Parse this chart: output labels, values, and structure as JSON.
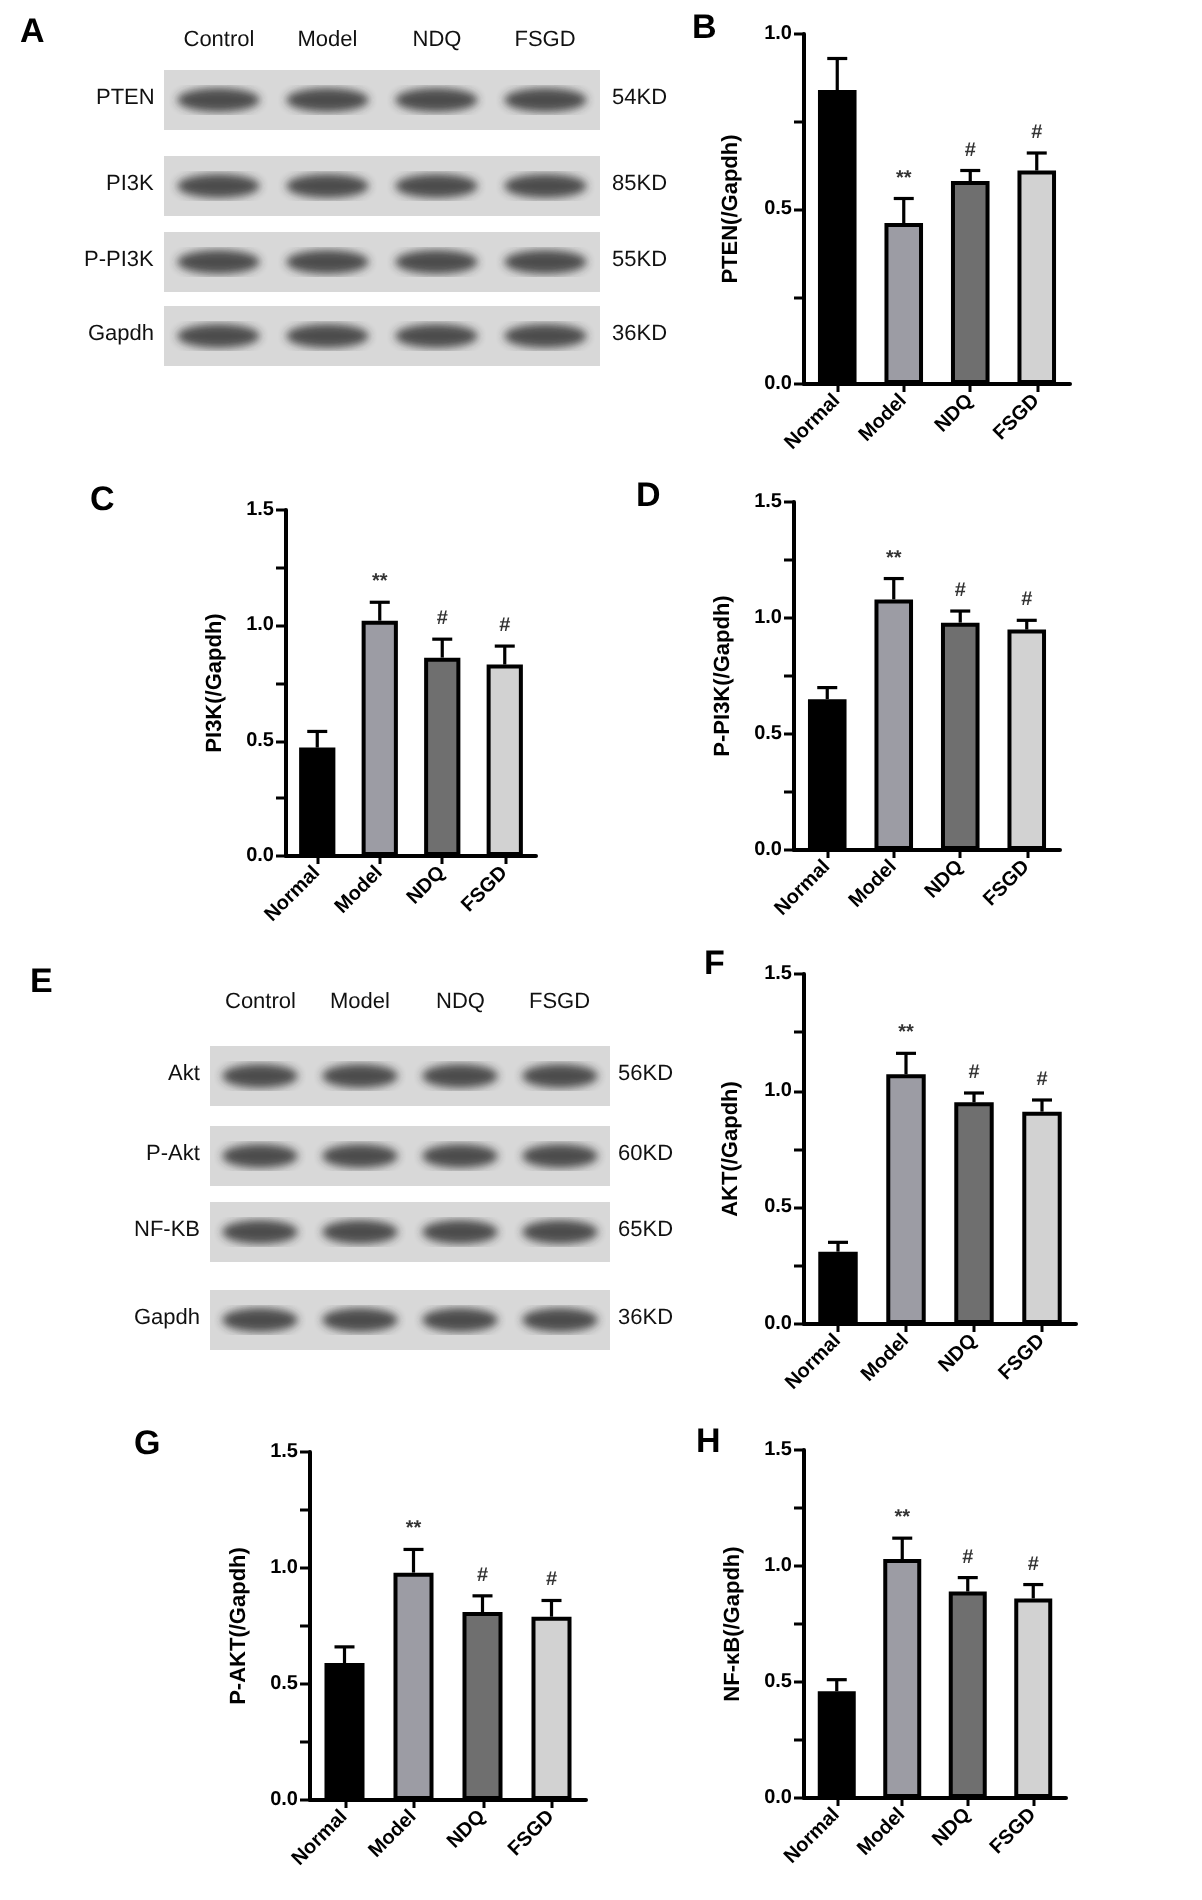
{
  "chart_data": [
    {
      "type": "other",
      "title": "A",
      "categories": [
        "Control",
        "Model",
        "NDQ",
        "FSGD"
      ],
      "y_categories": [
        "PTEN",
        "PI3K",
        "P-PI3K",
        "Gapdh"
      ],
      "y2_categories": [
        "54KD",
        "85KD",
        "55KD",
        "36KD"
      ]
    },
    {
      "type": "bar",
      "title": "B",
      "categories": [
        "Normal",
        "Model",
        "NDQ",
        "FSGD"
      ],
      "values": [
        0.84,
        0.46,
        0.58,
        0.61
      ],
      "colors": [
        "#000000",
        "#9c9ca4",
        "#6f6f6f",
        "#d2d2d2"
      ],
      "errors": [
        [
          0.84,
          0.93
        ],
        [
          0.46,
          0.53
        ],
        [
          0.58,
          0.61
        ],
        [
          0.61,
          0.66
        ]
      ],
      "ylabel": "PTEN(/Gapdh)",
      "ylim": [
        0,
        1
      ],
      "yticks": [
        {
          "value": 0,
          "label": "0.0"
        },
        {
          "value": 0.25,
          "label": null
        },
        {
          "value": 0.5,
          "label": "0.5"
        },
        {
          "value": 0.75,
          "label": null
        },
        {
          "value": 1,
          "label": "1.0"
        }
      ],
      "grid": false,
      "annotations": [
        {
          "text": "**",
          "x": "Model",
          "y": 0.46
        },
        {
          "text": "#",
          "x": "NDQ",
          "y": 0.58
        },
        {
          "text": "#",
          "x": "FSGD",
          "y": 0.61
        }
      ]
    },
    {
      "type": "bar",
      "title": "C",
      "categories": [
        "Normal",
        "Model",
        "NDQ",
        "FSGD"
      ],
      "values": [
        0.47,
        1.02,
        0.86,
        0.83
      ],
      "colors": [
        "#000000",
        "#9c9ca4",
        "#6f6f6f",
        "#d2d2d2"
      ],
      "errors": [
        [
          0.47,
          0.54
        ],
        [
          1.02,
          1.1
        ],
        [
          0.86,
          0.94
        ],
        [
          0.83,
          0.91
        ]
      ],
      "ylabel": "PI3K(/Gapdh)",
      "ylim": [
        0,
        1.5
      ],
      "yticks": [
        {
          "value": 0,
          "label": "0.0"
        },
        {
          "value": 0.25,
          "label": null
        },
        {
          "value": 0.5,
          "label": "0.5"
        },
        {
          "value": 0.75,
          "label": null
        },
        {
          "value": 1,
          "label": "1.0"
        },
        {
          "value": 1.25,
          "label": null
        },
        {
          "value": 1.5,
          "label": "1.5"
        }
      ],
      "grid": false,
      "annotations": [
        {
          "text": "**",
          "x": "Model",
          "y": 1.02
        },
        {
          "text": "#",
          "x": "NDQ",
          "y": 0.86
        },
        {
          "text": "#",
          "x": "FSGD",
          "y": 0.83
        }
      ]
    },
    {
      "type": "bar",
      "title": "D",
      "categories": [
        "Normal",
        "Model",
        "NDQ",
        "FSGD"
      ],
      "values": [
        0.65,
        1.08,
        0.98,
        0.95
      ],
      "colors": [
        "#000000",
        "#9c9ca4",
        "#6f6f6f",
        "#d2d2d2"
      ],
      "errors": [
        [
          0.65,
          0.7
        ],
        [
          1.08,
          1.17
        ],
        [
          0.98,
          1.03
        ],
        [
          0.95,
          0.99
        ]
      ],
      "ylabel": "P-PI3K(/Gapdh)",
      "ylim": [
        0,
        1.5
      ],
      "yticks": [
        {
          "value": 0,
          "label": "0.0"
        },
        {
          "value": 0.25,
          "label": null
        },
        {
          "value": 0.5,
          "label": "0.5"
        },
        {
          "value": 0.75,
          "label": null
        },
        {
          "value": 1,
          "label": "1.0"
        },
        {
          "value": 1.25,
          "label": null
        },
        {
          "value": 1.5,
          "label": "1.5"
        }
      ],
      "grid": false,
      "annotations": [
        {
          "text": "**",
          "x": "Model",
          "y": 1.08
        },
        {
          "text": "#",
          "x": "NDQ",
          "y": 0.98
        },
        {
          "text": "#",
          "x": "FSGD",
          "y": 0.95
        }
      ]
    },
    {
      "type": "other",
      "title": "E",
      "categories": [
        "Control",
        "Model",
        "NDQ",
        "FSGD"
      ],
      "y_categories": [
        "Akt",
        "P-Akt",
        "NF-KB",
        "Gapdh"
      ],
      "y2_categories": [
        "56KD",
        "60KD",
        "65KD",
        "36KD"
      ]
    },
    {
      "type": "bar",
      "title": "F",
      "categories": [
        "Normal",
        "Model",
        "NDQ",
        "FSGD"
      ],
      "values": [
        0.31,
        1.07,
        0.95,
        0.91
      ],
      "colors": [
        "#000000",
        "#9c9ca4",
        "#6f6f6f",
        "#d2d2d2"
      ],
      "errors": [
        [
          0.31,
          0.35
        ],
        [
          1.07,
          1.16
        ],
        [
          0.95,
          0.99
        ],
        [
          0.91,
          0.96
        ]
      ],
      "ylabel": "AKT(/Gapdh)",
      "ylim": [
        0,
        1.5
      ],
      "yticks": [
        {
          "value": 0,
          "label": "0.0"
        },
        {
          "value": 0.25,
          "label": null
        },
        {
          "value": 0.5,
          "label": "0.5"
        },
        {
          "value": 0.75,
          "label": null
        },
        {
          "value": 1,
          "label": "1.0"
        },
        {
          "value": 1.25,
          "label": null
        },
        {
          "value": 1.5,
          "label": "1.5"
        }
      ],
      "grid": false,
      "annotations": [
        {
          "text": "**",
          "x": "Model",
          "y": 1.07
        },
        {
          "text": "#",
          "x": "NDQ",
          "y": 0.95
        },
        {
          "text": "#",
          "x": "FSGD",
          "y": 0.91
        }
      ]
    },
    {
      "type": "bar",
      "title": "G",
      "categories": [
        "Normal",
        "Model",
        "NDQ",
        "FSGD"
      ],
      "values": [
        0.59,
        0.98,
        0.81,
        0.79
      ],
      "colors": [
        "#000000",
        "#9c9ca4",
        "#6f6f6f",
        "#d2d2d2"
      ],
      "errors": [
        [
          0.59,
          0.66
        ],
        [
          0.98,
          1.08
        ],
        [
          0.81,
          0.88
        ],
        [
          0.79,
          0.86
        ]
      ],
      "ylabel": "P-AKT(/Gapdh)",
      "ylim": [
        0,
        1.5
      ],
      "yticks": [
        {
          "value": 0,
          "label": "0.0"
        },
        {
          "value": 0.25,
          "label": null
        },
        {
          "value": 0.5,
          "label": "0.5"
        },
        {
          "value": 0.75,
          "label": null
        },
        {
          "value": 1,
          "label": "1.0"
        },
        {
          "value": 1.25,
          "label": null
        },
        {
          "value": 1.5,
          "label": "1.5"
        }
      ],
      "grid": false,
      "annotations": [
        {
          "text": "**",
          "x": "Model",
          "y": 0.98
        },
        {
          "text": "#",
          "x": "NDQ",
          "y": 0.81
        },
        {
          "text": "#",
          "x": "FSGD",
          "y": 0.79
        }
      ]
    },
    {
      "type": "bar",
      "title": "H",
      "categories": [
        "Normal",
        "Model",
        "NDQ",
        "FSGD"
      ],
      "values": [
        0.46,
        1.03,
        0.89,
        0.86
      ],
      "colors": [
        "#000000",
        "#9c9ca4",
        "#6f6f6f",
        "#d2d2d2"
      ],
      "errors": [
        [
          0.46,
          0.51
        ],
        [
          1.03,
          1.12
        ],
        [
          0.89,
          0.95
        ],
        [
          0.86,
          0.92
        ]
      ],
      "ylabel": "NF-κB(/Gapdh)",
      "ylim": [
        0,
        1.5
      ],
      "yticks": [
        {
          "value": 0,
          "label": "0.0"
        },
        {
          "value": 0.25,
          "label": null
        },
        {
          "value": 0.5,
          "label": "0.5"
        },
        {
          "value": 0.75,
          "label": null
        },
        {
          "value": 1,
          "label": "1.0"
        },
        {
          "value": 1.25,
          "label": null
        },
        {
          "value": 1.5,
          "label": "1.5"
        }
      ],
      "grid": false,
      "annotations": [
        {
          "text": "**",
          "x": "Model",
          "y": 1.03
        },
        {
          "text": "#",
          "x": "NDQ",
          "y": 0.89
        },
        {
          "text": "#",
          "x": "FSGD",
          "y": 0.86
        }
      ]
    }
  ]
}
